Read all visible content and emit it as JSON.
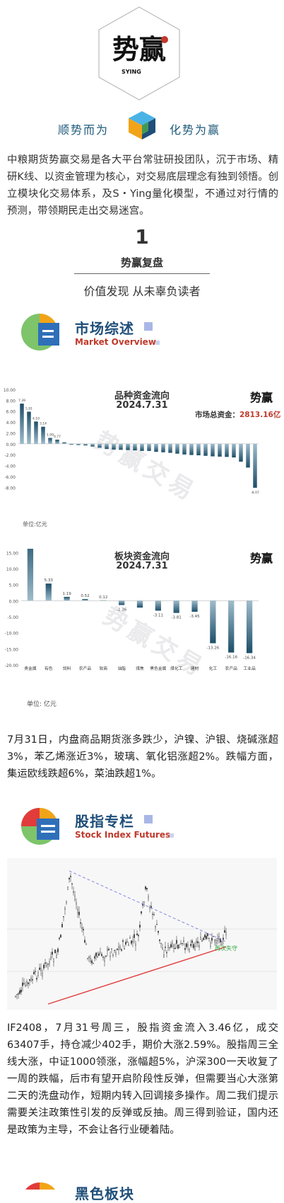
{
  "brand": {
    "logo_text": "势赢",
    "logo_caption": "SYING",
    "slogan_left": "顺势而为",
    "slogan_right": "化势为赢"
  },
  "intro": "中粮期货势赢交易是各大平台常驻研投团队，沉于市场、精研K线、以资金管理为核心，对交易底层理念有独到领悟。创立模块化交易体系，及S・Ying量化模型，不通过对行情的预测，带领期民走出交易迷宫。",
  "section": {
    "number": "1",
    "title": "势赢复盘",
    "subtitle": "价值发现 从未辜负读者"
  },
  "market_overview": {
    "title": "市场综述",
    "subtitle": "Market Overview"
  },
  "chart1": {
    "title": "品种资金流向",
    "date": "2024.7.31",
    "total_label": "市场总资金：",
    "total_value": "2813.16亿",
    "unit_note": "单位:亿元",
    "watermark": "势赢交易",
    "logo_text": "势赢"
  },
  "chart2": {
    "title": "板块资金流向",
    "date": "2024.7.31",
    "unit_note": "单位: 亿元",
    "watermark": "势赢交易",
    "logo_text": "势赢"
  },
  "chart_data": [
    {
      "type": "bar",
      "title": "品种资金流向",
      "ylim": [
        -9,
        10
      ],
      "yticks": [
        10,
        8,
        6,
        4,
        2,
        0,
        -2,
        -4,
        -6,
        -8
      ],
      "values": [
        7.39,
        5.91,
        4.1,
        3.14,
        1.09,
        0.77,
        0.29,
        -0.16,
        -0.22,
        -0.3,
        -0.5,
        -0.7,
        -0.95,
        -1.05,
        -1.1,
        -1.14,
        -1.2,
        -1.3,
        -1.3,
        -1.46,
        -1.55,
        -1.65,
        -1.8,
        -1.95,
        -2.05,
        -2.1,
        -2.2,
        -2.3,
        -2.35,
        -2.4,
        -2.5,
        -3.27,
        -4.36,
        -8.07
      ],
      "data_labels": [
        "7.39",
        "5.91",
        "4.10",
        "3.14",
        "1.09",
        "0.77",
        "",
        "",
        "",
        "",
        "",
        "",
        "",
        "",
        "",
        "",
        "",
        "",
        "",
        "",
        "",
        "",
        "",
        "",
        "",
        "",
        "",
        "",
        "",
        "",
        "",
        "",
        "",
        "-8.07"
      ]
    },
    {
      "type": "bar",
      "title": "板块资金流向",
      "categories": [
        "贵金属",
        "有色",
        "饲料",
        "农产品",
        "软商",
        "油脂",
        "煤焦",
        "黑色金属",
        "煤化工",
        "建材",
        "化工",
        "农产品",
        "工业品"
      ],
      "ylim": [
        -20,
        25
      ],
      "yticks": [
        25,
        20,
        15,
        10,
        5,
        0,
        -5,
        -10,
        -15,
        -20
      ],
      "values": [
        21.61,
        5.33,
        1.19,
        0.52,
        0.12,
        -1.36,
        -2.15,
        -3.11,
        -3.81,
        -3.45,
        -13.26,
        -16.16,
        -16.34
      ],
      "data_labels": [
        "21.61",
        "5.33",
        "1.19",
        "0.52",
        "0.12",
        "-1.36",
        "",
        "-3.11",
        "-3.81",
        "-3.45",
        "-13.26",
        "-16.16",
        "-16.34"
      ]
    }
  ],
  "paragraph1": "7月31日，内盘商品期货涨多跌少，沪镍、沪银、烧碱涨超3%，苯乙烯涨近3%，玻璃、氧化铝涨超2%。跌幅方面，集运欧线跌超6%，菜油跌超1%。",
  "stock_index": {
    "title": "股指专栏",
    "subtitle": "Stock Index Futures",
    "chart_annotation": "再次失守"
  },
  "paragraph2": "IF2408，7月31号周三，股指资金流入3.46亿，成交63407手，持仓减少402手，期价大涨2.59%。股指周三全线大涨，中证1000领涨，涨幅超5%，沪深300一天收复了一周的跌幅，后市有望开启阶段性反弹，但需要当心大涨第二天的洗盘动作，短期内转入回调接多操作。周二我们提示需要关注政策性引发的反弹或反抽。周三得到验证，国内还是政策为主导，不会让各行业硬着陆。",
  "next_section": {
    "title": "黑色板块"
  },
  "colors": {
    "navy": "#1f4e79",
    "red": "#c0392b",
    "bar_top": "#1d4e68",
    "bar_bottom": "#9fbccb"
  }
}
